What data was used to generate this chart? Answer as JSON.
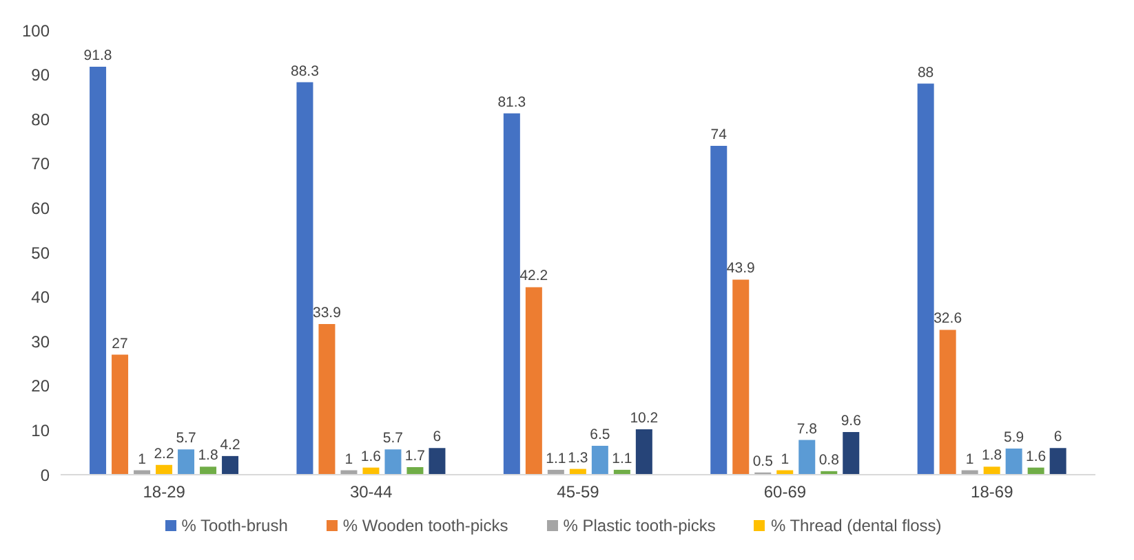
{
  "chart_data": {
    "type": "bar",
    "categories": [
      "18-29",
      "30-44",
      "45-59",
      "60-69",
      "18-69"
    ],
    "series": [
      {
        "name": "% Tooth-brush",
        "color": "#4472c4",
        "values": [
          91.8,
          88.3,
          81.3,
          74,
          88
        ]
      },
      {
        "name": "% Wooden tooth-picks",
        "color": "#ed7d31",
        "values": [
          27,
          33.9,
          42.2,
          43.9,
          32.6
        ]
      },
      {
        "name": "% Plastic tooth-picks",
        "color": "#a5a5a5",
        "values": [
          1,
          1,
          1.1,
          0.5,
          1
        ]
      },
      {
        "name": "% Thread (dental floss)",
        "color": "#ffc000",
        "values": [
          2.2,
          1.6,
          1.3,
          1,
          1.8
        ]
      },
      {
        "color": "#5b9bd5",
        "values": [
          5.7,
          5.7,
          6.5,
          7.8,
          5.9
        ]
      },
      {
        "color": "#70ad47",
        "values": [
          1.8,
          1.7,
          1.1,
          0.8,
          1.6
        ]
      },
      {
        "color": "#264478",
        "values": [
          4.2,
          6,
          10.2,
          9.6,
          6
        ]
      }
    ],
    "ylim": [
      0,
      100
    ],
    "yticks": [
      0,
      10,
      20,
      30,
      40,
      50,
      60,
      70,
      80,
      90,
      100
    ],
    "grid": false,
    "legend": "bottom",
    "data_labels": true
  }
}
